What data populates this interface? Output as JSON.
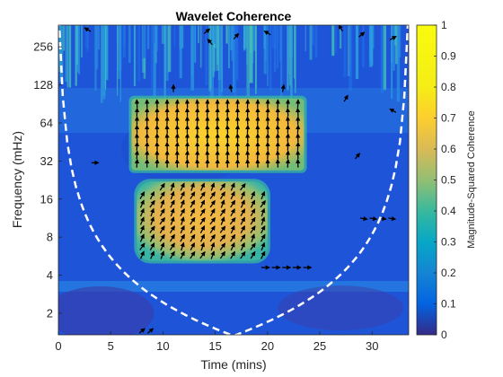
{
  "chart_data": {
    "type": "heatmap",
    "title": "Wavelet Coherence",
    "xlabel": "Time (mins)",
    "ylabel": "Frequency (mHz)",
    "xlim": [
      0,
      33.5
    ],
    "ylim": [
      1.35,
      380
    ],
    "yscale": "log2",
    "x_ticks": [
      0,
      5,
      10,
      15,
      20,
      25,
      30
    ],
    "y_ticks": [
      2,
      4,
      8,
      16,
      32,
      64,
      128,
      256
    ],
    "colorbar": {
      "label": "Magnitude-Squared Coherence",
      "range": [
        0,
        1
      ],
      "ticks": [
        0,
        0.1,
        0.2,
        0.3,
        0.4,
        0.5,
        0.6,
        0.7,
        0.8,
        0.9,
        1
      ],
      "colormap": "parula"
    },
    "regions": [
      {
        "x": [
          7,
          23.5
        ],
        "freq": [
          27,
          100
        ],
        "coherence": 0.95
      },
      {
        "x": [
          7.5,
          20
        ],
        "freq": [
          5.2,
          22
        ],
        "coherence": 0.85
      }
    ],
    "cone_of_influence": {
      "style": "white dashed"
    }
  }
}
